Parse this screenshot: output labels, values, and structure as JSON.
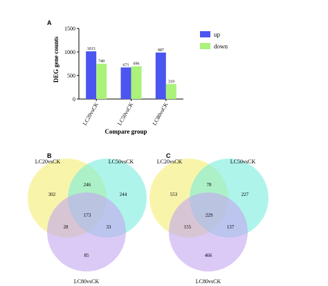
{
  "panels": {
    "a": "A",
    "b": "B",
    "c": "C"
  },
  "colors": {
    "up": "#4b55f0",
    "down": "#aaf27a",
    "venn_a": "#f5ef7e",
    "venn_b": "#79ecdc",
    "venn_c": "#c3a5f0"
  },
  "chart_data": [
    {
      "type": "bar",
      "categories": [
        "LC20vsCK",
        "LC50vsCK",
        "LC80vsCK"
      ],
      "series": [
        {
          "name": "up",
          "values": [
            1013,
            671,
            987
          ],
          "labels": [
            "1013",
            "671",
            "987"
          ]
        },
        {
          "name": "down",
          "values": [
            749,
            696,
            319
          ],
          "labels": [
            "749",
            "696",
            "319"
          ]
        }
      ],
      "xlabel": "Compare group",
      "ylabel": "DEG gene counts",
      "ylim": [
        0,
        1500
      ],
      "yticks": [
        "0",
        "500",
        "1000",
        "1500"
      ],
      "legend_position": "right",
      "grid": false
    },
    {
      "type": "venn",
      "sets": [
        "LC20vsCK",
        "LC50vsCK",
        "LC80vsCK"
      ],
      "regions": {
        "only_a": "302",
        "only_b": "244",
        "only_c": "85",
        "ab": "246",
        "ac": "28",
        "bc": "33",
        "abc": "173"
      }
    },
    {
      "type": "venn",
      "sets": [
        "LC20vsCK",
        "LC50vsCK",
        "LC80vsCK"
      ],
      "regions": {
        "only_a": "553",
        "only_b": "227",
        "only_c": "466",
        "ab": "78",
        "ac": "155",
        "bc": "137",
        "abc": "229"
      }
    }
  ]
}
